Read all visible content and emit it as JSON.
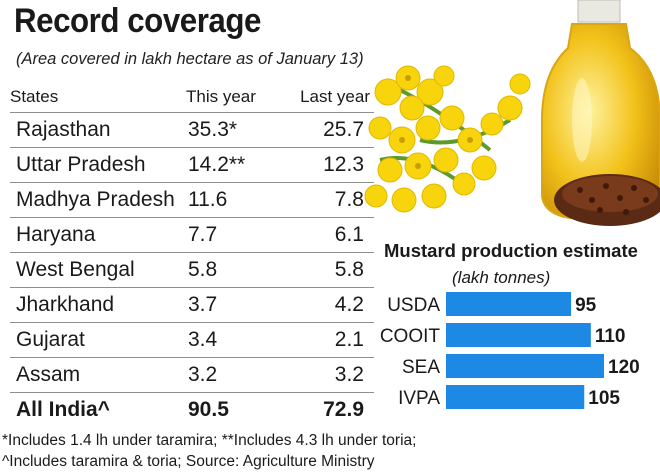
{
  "title": "Record coverage",
  "subtitle": "(Area covered in lakh hectare as of January 13)",
  "table": {
    "headers": [
      "States",
      "This year",
      "Last year"
    ],
    "rows": [
      {
        "state": "Rajasthan",
        "this_year": "35.3*",
        "last_year": "25.7"
      },
      {
        "state": "Uttar Pradesh",
        "this_year": "14.2**",
        "last_year": "12.3"
      },
      {
        "state": "Madhya Pradesh",
        "this_year": "11.6",
        "last_year": "7.8"
      },
      {
        "state": "Haryana",
        "this_year": "7.7",
        "last_year": "6.1"
      },
      {
        "state": "West Bengal",
        "this_year": "5.8",
        "last_year": "5.8"
      },
      {
        "state": "Jharkhand",
        "this_year": "3.7",
        "last_year": "4.2"
      },
      {
        "state": "Gujarat",
        "this_year": "3.4",
        "last_year": "2.1"
      },
      {
        "state": "Assam",
        "this_year": "3.2",
        "last_year": "3.2"
      }
    ],
    "total": {
      "state": "All India^",
      "this_year": "90.5",
      "last_year": "72.9"
    }
  },
  "chart_data": {
    "type": "bar",
    "orientation": "horizontal",
    "title": "Mustard production estimate",
    "subtitle": "(lakh tonnes)",
    "categories": [
      "USDA",
      "COOIT",
      "SEA",
      "IVPA"
    ],
    "values": [
      95,
      110,
      120,
      105
    ],
    "bar_color": "#1e88e5",
    "grid": false,
    "xlim": [
      0,
      120
    ]
  },
  "footnotes": [
    "*Includes 1.4 lh under taramira; **Includes 4.3 lh under toria;",
    "^Includes taramira & toria;  Source: Agriculture Ministry"
  ]
}
